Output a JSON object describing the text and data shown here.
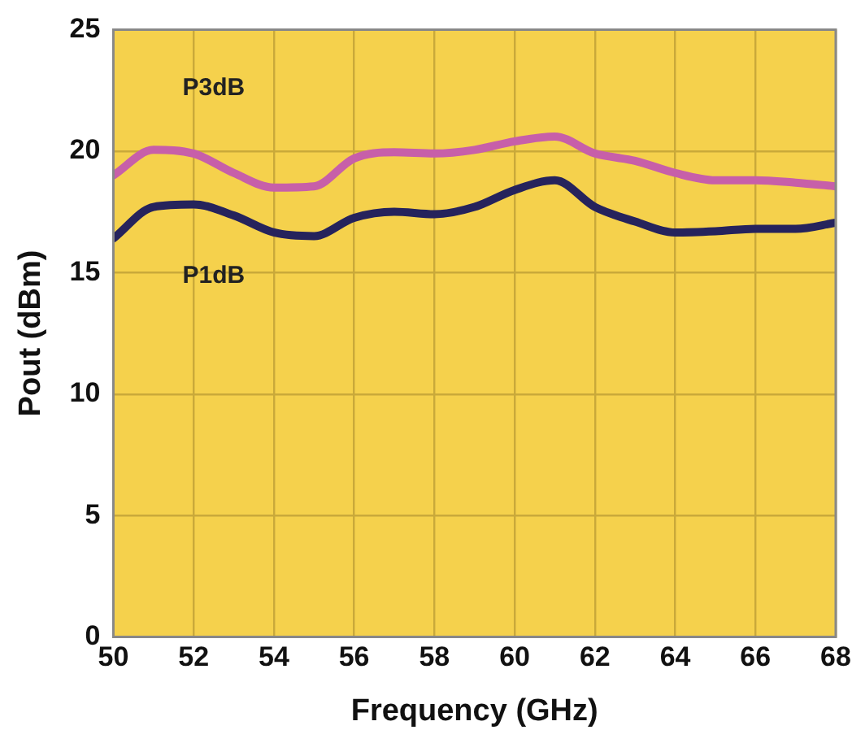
{
  "chart_data": {
    "type": "line",
    "xlabel": "Frequency (GHz)",
    "ylabel": "Pout (dBm)",
    "x": [
      50,
      51,
      52,
      53,
      54,
      55,
      56,
      57,
      58,
      59,
      60,
      61,
      62,
      63,
      64,
      65,
      66,
      67,
      68
    ],
    "series": [
      {
        "name": "P3dB",
        "color": "#c75fa9",
        "values": [
          19.0,
          20.05,
          19.9,
          19.1,
          18.5,
          18.55,
          19.7,
          19.95,
          19.9,
          20.05,
          20.4,
          20.6,
          19.9,
          19.6,
          19.1,
          18.8,
          18.8,
          18.7,
          18.55
        ]
      },
      {
        "name": "P1dB",
        "color": "#26235c",
        "values": [
          16.4,
          17.7,
          17.8,
          17.35,
          16.65,
          16.5,
          17.25,
          17.5,
          17.4,
          17.7,
          18.4,
          18.8,
          17.7,
          17.1,
          16.65,
          16.7,
          16.8,
          16.8,
          17.05
        ]
      }
    ],
    "xlim": [
      50,
      68
    ],
    "xticks": [
      50,
      52,
      54,
      56,
      58,
      60,
      62,
      64,
      66,
      68
    ],
    "ylim": [
      0,
      25
    ],
    "yticks": [
      0,
      5,
      10,
      15,
      20,
      25
    ],
    "grid": true,
    "legend": false,
    "marker": "none",
    "line_style": "solid"
  }
}
